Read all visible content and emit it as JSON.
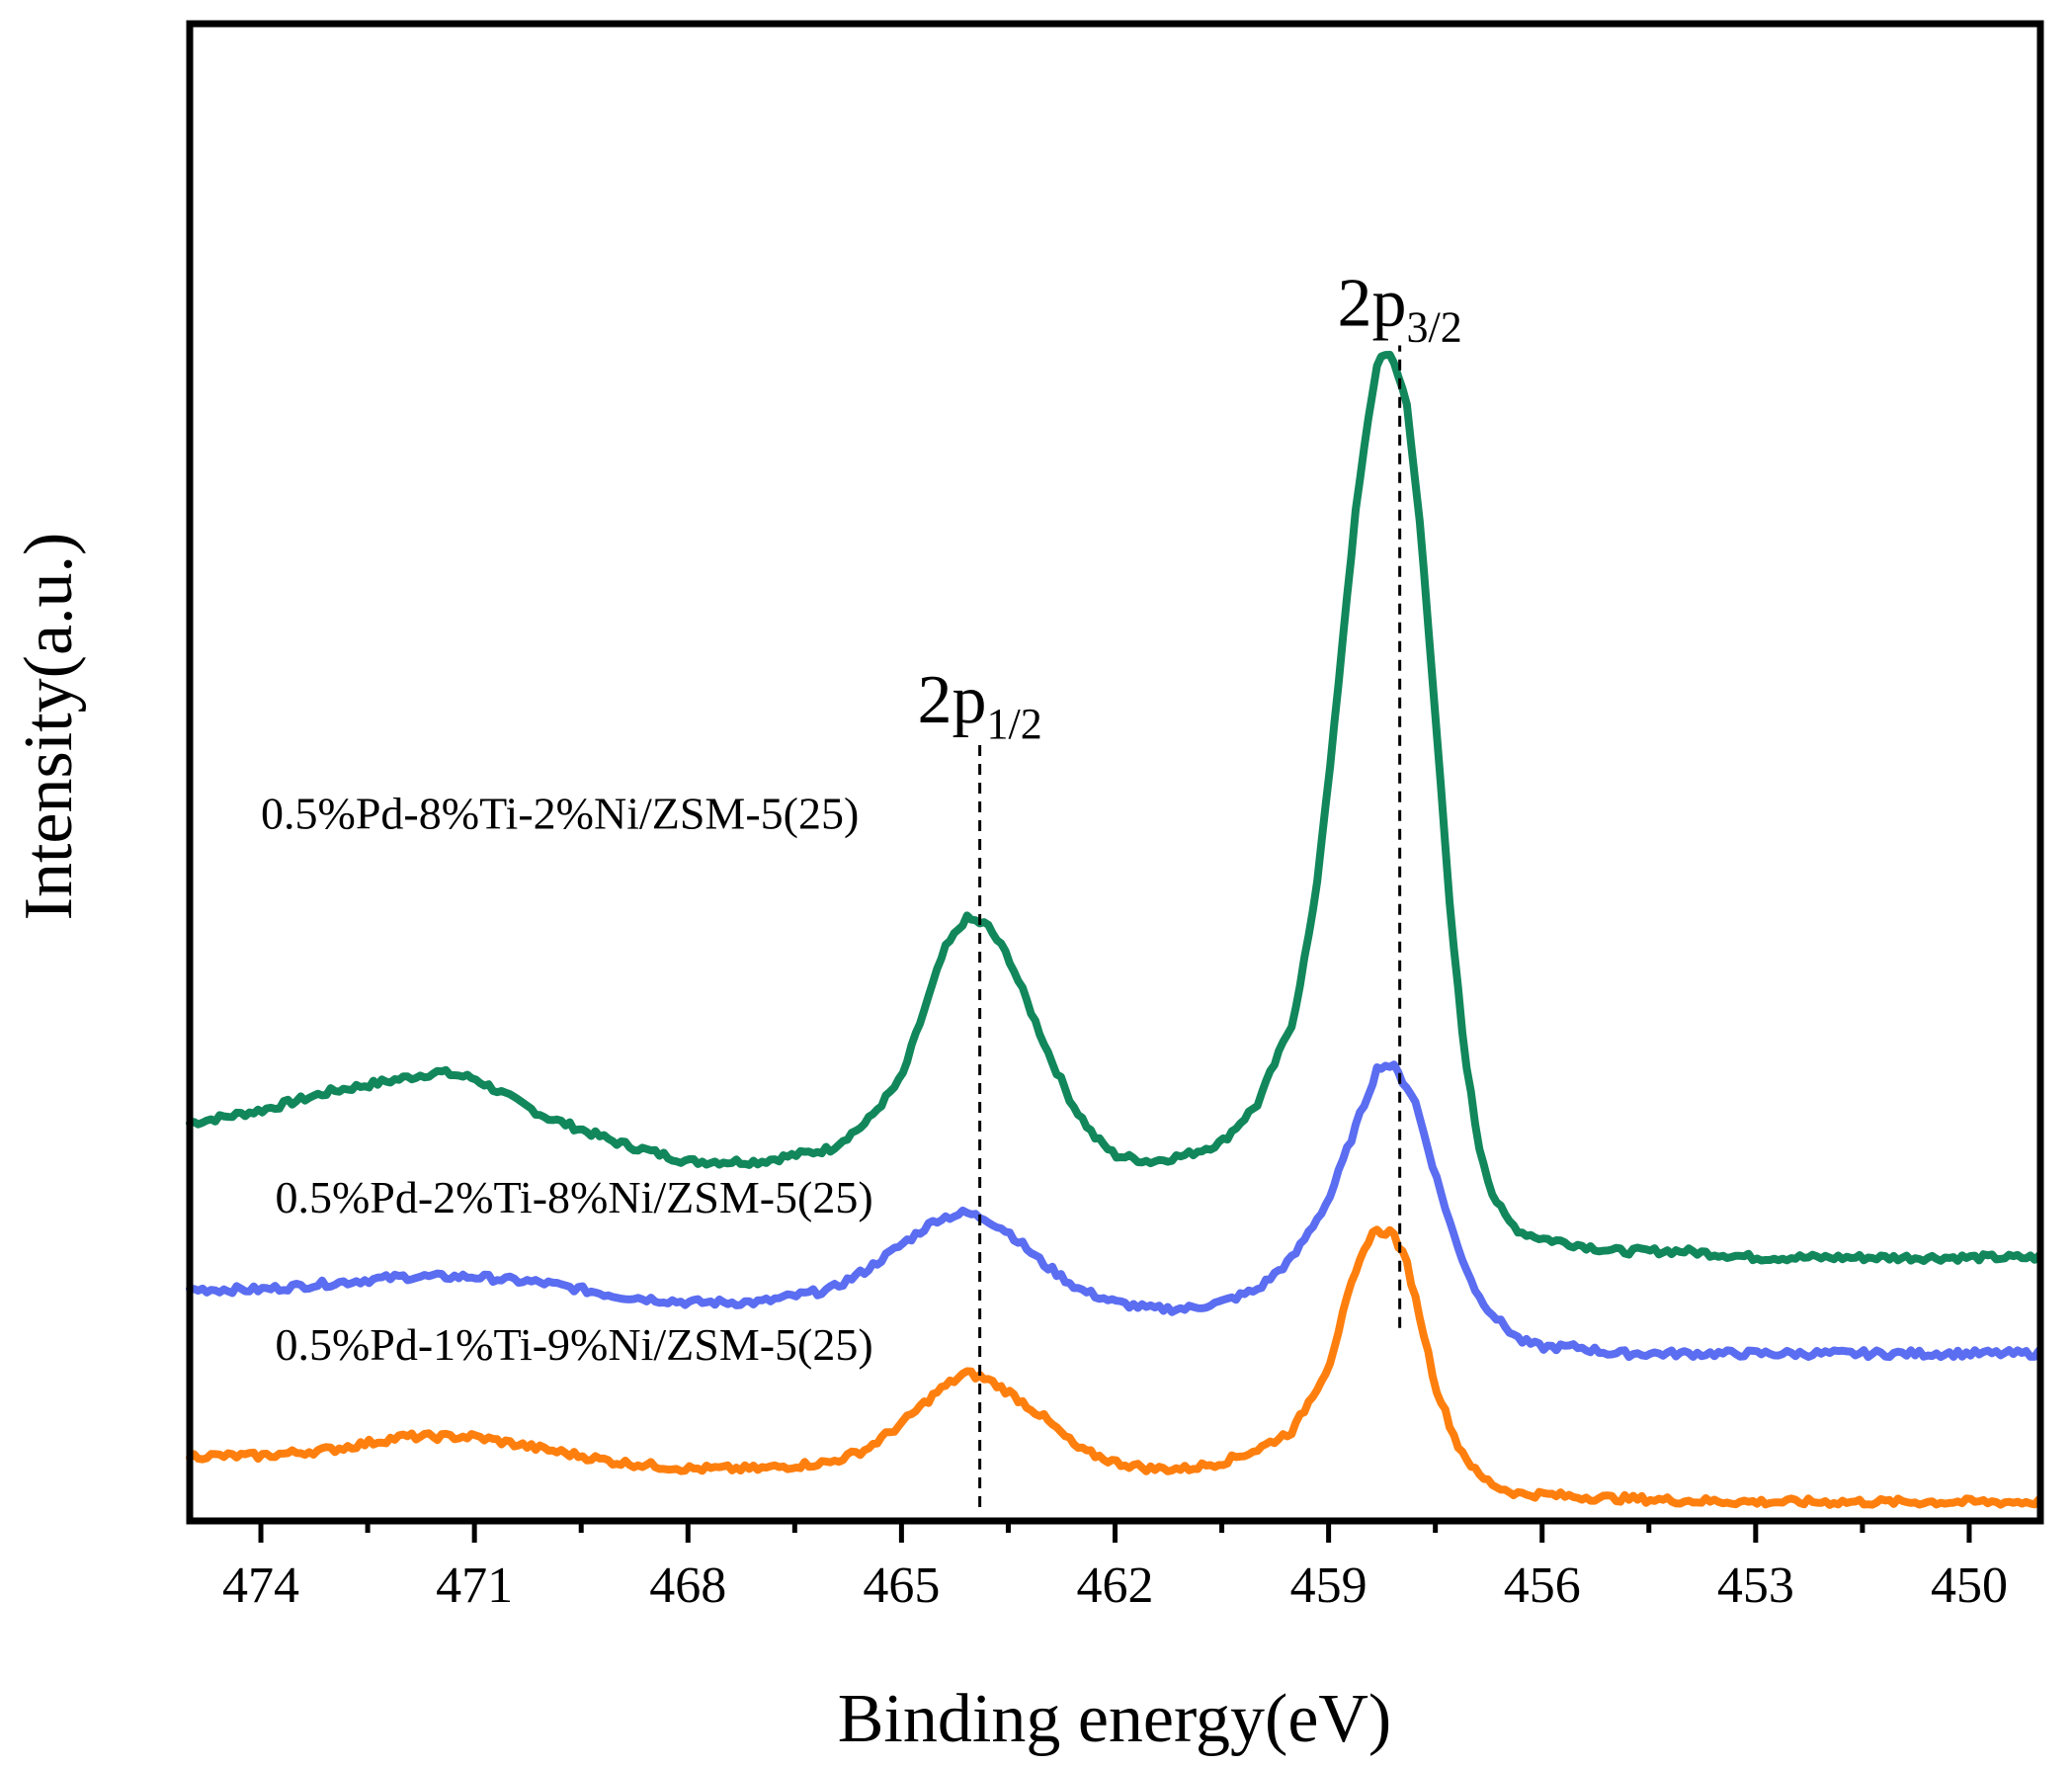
{
  "chart_data": {
    "type": "line",
    "xlabel": "Binding energy(eV)",
    "ylabel": "Intensity(a.u.)",
    "xlim": [
      475,
      449
    ],
    "x_reversed": true,
    "ylim": [
      0,
      100
    ],
    "y_ticks_shown": false,
    "x_ticks": [
      474,
      471,
      468,
      465,
      462,
      459,
      456,
      453,
      450
    ],
    "x_tick_labels": [
      "474",
      "471",
      "468",
      "465",
      "462",
      "459",
      "456",
      "453",
      "450"
    ],
    "grid": false,
    "legend": "none",
    "annotations": [
      {
        "main": "2p",
        "sub": "1/2",
        "x": 463.9,
        "line_y": [
          0,
          59
        ]
      },
      {
        "main": "2p",
        "sub": "3/2",
        "x": 458.0,
        "line_y": [
          14,
          90
        ]
      }
    ],
    "series": [
      {
        "name": "0.5%Pd-8%Ti-2%Ni/ZSM-5(25)",
        "color": "#12875c",
        "label_x": 474.0,
        "label_y": 53,
        "x": [
          475,
          474,
          473,
          472,
          471.5,
          471,
          470.5,
          470,
          469,
          468,
          467,
          466,
          465.5,
          465,
          464.7,
          464.4,
          464.1,
          463.8,
          463.5,
          463.2,
          462.9,
          462.6,
          462.3,
          462,
          461.5,
          461,
          460.5,
          460,
          459.5,
          459.2,
          458.9,
          458.6,
          458.3,
          458.1,
          457.9,
          457.7,
          457.5,
          457.3,
          457.1,
          456.9,
          456.7,
          456.5,
          456.3,
          456,
          455.5,
          455,
          454,
          453,
          452,
          451,
          450,
          449
        ],
        "y": [
          30,
          31,
          32.5,
          33.5,
          34,
          33.5,
          32,
          30.5,
          28.5,
          27,
          27,
          28,
          30,
          33.5,
          38.5,
          43.5,
          46,
          45.5,
          43,
          39,
          35,
          31.5,
          29,
          27.5,
          27,
          27.5,
          28.5,
          31.5,
          38,
          47,
          62,
          79,
          90,
          90,
          86,
          76,
          62,
          47,
          36,
          28.5,
          24.5,
          22.5,
          21.5,
          21,
          20.5,
          20,
          20,
          19.5,
          19.5,
          19.5,
          19.5,
          19.5
        ]
      },
      {
        "name": "0.5%Pd-2%Ti-8%Ni/ZSM-5(25)",
        "color": "#5b6df0",
        "label_x": 473.8,
        "label_y": 23,
        "x": [
          475,
          474,
          473,
          472,
          471,
          470,
          469,
          468,
          467,
          466,
          465.5,
          465,
          464.5,
          464.1,
          463.8,
          463.5,
          463,
          462.5,
          462,
          461.5,
          461,
          460.5,
          460,
          459.5,
          459,
          458.6,
          458.3,
          458.1,
          457.8,
          457.5,
          457.2,
          456.9,
          456.6,
          456.3,
          456,
          455.5,
          455,
          454,
          453,
          452,
          451,
          450,
          449
        ],
        "y": [
          17,
          17,
          17.5,
          18,
          18,
          17.5,
          16.5,
          16,
          16,
          17,
          18.5,
          20.5,
          22.5,
          23,
          22.5,
          21.5,
          19,
          17,
          16,
          15.5,
          15.5,
          16,
          17,
          19.5,
          24,
          30,
          34.5,
          34.5,
          32,
          26,
          20.5,
          16.5,
          14.5,
          13,
          12.5,
          12.5,
          12,
          12,
          12,
          12,
          12,
          12,
          12
        ]
      },
      {
        "name": "0.5%Pd-1%Ti-9%Ni/ZSM-5(25)",
        "color": "#ff7f0e",
        "label_x": 473.8,
        "label_y": 11.5,
        "x": [
          475,
          474,
          473,
          472,
          471,
          470,
          469,
          468,
          467,
          466,
          465.5,
          465,
          464.5,
          464.1,
          463.8,
          463.5,
          463,
          462.5,
          462,
          461.5,
          461,
          460.5,
          460,
          459.5,
          459,
          458.7,
          458.4,
          458.1,
          457.9,
          457.7,
          457.5,
          457.2,
          456.9,
          456.6,
          456.3,
          456,
          455.5,
          455,
          454,
          453,
          452,
          451,
          450,
          449
        ],
        "y": [
          4,
          4,
          4.5,
          5.5,
          5.5,
          4.5,
          3.5,
          3,
          3,
          3.5,
          4.5,
          6.5,
          9,
          10.5,
          10,
          9,
          7,
          4.5,
          3.5,
          3,
          3,
          3.5,
          4.5,
          6,
          11,
          17,
          21.5,
          21.5,
          19,
          14.5,
          9.5,
          5,
          2.5,
          1.5,
          1,
          1,
          0.8,
          0.7,
          0.5,
          0.4,
          0.4,
          0.4,
          0.4,
          0.4
        ]
      }
    ]
  }
}
